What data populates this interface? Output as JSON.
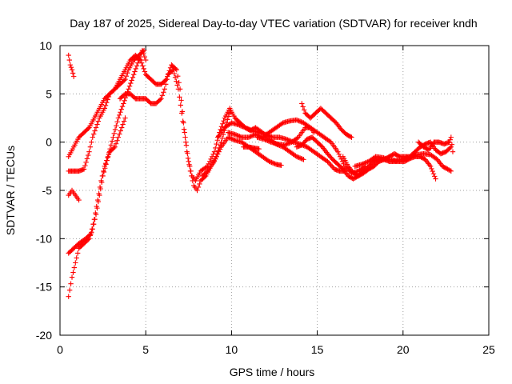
{
  "chart_data": {
    "type": "scatter",
    "title": "Day 187 of 2025, Sidereal Day-to-day VTEC variation (SDTVAR) for receiver kndh",
    "xlabel": "GPS time / hours",
    "ylabel": "SDTVAR / TECUs",
    "xlim": [
      0,
      25
    ],
    "ylim": [
      -20,
      10
    ],
    "xticks": [
      "0",
      "5",
      "10",
      "15",
      "20",
      "25"
    ],
    "yticks": [
      "10",
      "5",
      "0",
      "-5",
      "-10",
      "-15",
      "-20"
    ],
    "grid": true,
    "marker": "plus",
    "color": "#ff0000",
    "series": [
      {
        "name": "s1",
        "points": [
          [
            0.5,
            -16
          ],
          [
            0.7,
            -14
          ],
          [
            0.9,
            -12.5
          ],
          [
            1.1,
            -11
          ],
          [
            1.4,
            -10.5
          ],
          [
            1.7,
            -10
          ],
          [
            1.9,
            -9
          ],
          [
            2.1,
            -7.5
          ],
          [
            2.3,
            -5.5
          ],
          [
            2.5,
            -3.5
          ],
          [
            2.8,
            -1.5
          ],
          [
            3.1,
            0.5
          ],
          [
            3.4,
            2.5
          ],
          [
            3.7,
            4
          ],
          [
            4,
            5.5
          ],
          [
            4.3,
            7
          ],
          [
            4.6,
            8.5
          ],
          [
            4.8,
            9.5
          ],
          [
            5.0,
            8.5
          ]
        ]
      },
      {
        "name": "s2",
        "points": [
          [
            0.5,
            -11.5
          ],
          [
            0.8,
            -11
          ],
          [
            1.1,
            -10.5
          ],
          [
            1.5,
            -10
          ],
          [
            1.8,
            -9.5
          ],
          [
            2.0,
            -8
          ],
          [
            2.2,
            -6
          ],
          [
            2.4,
            -4
          ],
          [
            2.6,
            -2.5
          ],
          [
            2.9,
            -1
          ],
          [
            3.2,
            -0.5
          ],
          [
            3.4,
            0.5
          ],
          [
            3.6,
            1.5
          ],
          [
            3.8,
            2.5
          ]
        ]
      },
      {
        "name": "s3",
        "points": [
          [
            0.5,
            -3
          ],
          [
            0.8,
            -3
          ],
          [
            1.1,
            -3
          ],
          [
            1.4,
            -2.8
          ],
          [
            1.7,
            -1
          ],
          [
            1.9,
            0.5
          ],
          [
            2.1,
            1.5
          ],
          [
            2.3,
            2.5
          ],
          [
            2.6,
            3.5
          ],
          [
            2.9,
            5
          ],
          [
            3.2,
            5.5
          ],
          [
            3.5,
            6
          ],
          [
            3.8,
            6.5
          ],
          [
            4.0,
            7.5
          ],
          [
            4.3,
            8.5
          ],
          [
            4.6,
            9
          ],
          [
            4.9,
            9.5
          ]
        ]
      },
      {
        "name": "s4",
        "points": [
          [
            0.5,
            -5.5
          ],
          [
            0.7,
            -5
          ],
          [
            0.9,
            -5.5
          ],
          [
            1.1,
            -6
          ]
        ]
      },
      {
        "name": "s5",
        "points": [
          [
            0.5,
            9
          ],
          [
            0.6,
            8
          ],
          [
            0.7,
            7.5
          ],
          [
            0.8,
            6.8
          ]
        ]
      },
      {
        "name": "s6",
        "points": [
          [
            0.5,
            -1.5
          ],
          [
            0.8,
            -0.5
          ],
          [
            1.1,
            0.5
          ],
          [
            1.4,
            1
          ],
          [
            1.7,
            1.5
          ],
          [
            2.0,
            2.5
          ],
          [
            2.3,
            3.5
          ],
          [
            2.6,
            4.5
          ],
          [
            2.9,
            5
          ],
          [
            3.2,
            5.5
          ],
          [
            3.5,
            6.5
          ],
          [
            3.8,
            7.5
          ],
          [
            4.1,
            8.5
          ],
          [
            4.4,
            9
          ],
          [
            4.7,
            8.5
          ],
          [
            5.0,
            7
          ],
          [
            5.3,
            6.5
          ],
          [
            5.6,
            6
          ],
          [
            5.9,
            6
          ],
          [
            6.2,
            6.5
          ],
          [
            6.5,
            8
          ],
          [
            6.8,
            7.5
          ],
          [
            7.0,
            5.5
          ],
          [
            7.2,
            2
          ],
          [
            7.4,
            -1
          ],
          [
            7.6,
            -3
          ],
          [
            7.8,
            -4.5
          ],
          [
            8.0,
            -5
          ],
          [
            8.2,
            -4
          ],
          [
            8.5,
            -3.5
          ],
          [
            8.8,
            -2.5
          ],
          [
            9.1,
            -1.5
          ],
          [
            9.4,
            0
          ],
          [
            9.7,
            2
          ],
          [
            9.9,
            3
          ]
        ]
      },
      {
        "name": "s7",
        "points": [
          [
            3.5,
            4.5
          ],
          [
            3.8,
            5
          ],
          [
            4.1,
            5
          ],
          [
            4.4,
            4.5
          ],
          [
            4.7,
            4.5
          ],
          [
            5.0,
            4.5
          ],
          [
            5.3,
            4
          ],
          [
            5.6,
            4
          ],
          [
            5.9,
            4.5
          ],
          [
            6.1,
            5.5
          ],
          [
            6.3,
            7
          ],
          [
            6.6,
            7.5
          ],
          [
            6.9,
            5.5
          ],
          [
            7.1,
            3
          ],
          [
            7.3,
            0.5
          ],
          [
            7.5,
            -2
          ],
          [
            7.7,
            -3.5
          ],
          [
            7.9,
            -4
          ],
          [
            8.2,
            -3
          ],
          [
            8.6,
            -2.5
          ],
          [
            9.0,
            -1
          ],
          [
            9.3,
            1
          ],
          [
            9.6,
            2.5
          ],
          [
            9.9,
            3.5
          ],
          [
            10.2,
            2.5
          ],
          [
            10.5,
            2
          ],
          [
            10.8,
            1.5
          ],
          [
            11.1,
            1.2
          ],
          [
            11.4,
            1.5
          ],
          [
            11.8,
            1
          ],
          [
            12.2,
            0.3
          ],
          [
            12.6,
            -0.2
          ],
          [
            13.0,
            -0.5
          ],
          [
            13.4,
            -1
          ],
          [
            13.8,
            -1.5
          ],
          [
            14.2,
            -1.8
          ]
        ]
      },
      {
        "name": "s8",
        "points": [
          [
            8.3,
            -3.5
          ],
          [
            8.6,
            -3
          ],
          [
            9.0,
            -2
          ],
          [
            9.4,
            -0.5
          ],
          [
            9.8,
            0.5
          ],
          [
            10.2,
            0.2
          ],
          [
            10.6,
            0
          ],
          [
            11.0,
            -0.5
          ],
          [
            11.4,
            -1
          ],
          [
            11.8,
            -1.5
          ],
          [
            12.2,
            -2
          ],
          [
            12.6,
            -2.3
          ],
          [
            12.9,
            -2.4
          ]
        ]
      },
      {
        "name": "s9",
        "points": [
          [
            10.7,
            -0.5
          ],
          [
            11.0,
            -0.5
          ],
          [
            11.3,
            -0.6
          ],
          [
            11.6,
            -0.7
          ]
        ]
      },
      {
        "name": "s10",
        "points": [
          [
            9.2,
            0.5
          ],
          [
            9.6,
            1.5
          ],
          [
            10.0,
            2
          ],
          [
            10.4,
            1.8
          ],
          [
            10.8,
            1.5
          ],
          [
            11.2,
            1.2
          ],
          [
            11.6,
            1
          ],
          [
            12.0,
            0.8
          ],
          [
            12.4,
            0.5
          ],
          [
            12.8,
            0.5
          ],
          [
            13.2,
            0.3
          ],
          [
            13.6,
            0
          ],
          [
            14.0,
            -0.2
          ],
          [
            14.4,
            -0.5
          ],
          [
            14.8,
            -1
          ],
          [
            15.2,
            -1.5
          ],
          [
            15.6,
            -2
          ],
          [
            16.0,
            -2.8
          ],
          [
            16.3,
            -3
          ],
          [
            16.6,
            -3
          ]
        ]
      },
      {
        "name": "s11",
        "points": [
          [
            9.8,
            1
          ],
          [
            10.2,
            0.8
          ],
          [
            10.6,
            0.5
          ],
          [
            11.0,
            0.5
          ],
          [
            11.4,
            0.8
          ],
          [
            11.8,
            0.5
          ],
          [
            12.2,
            1
          ],
          [
            12.6,
            1.5
          ],
          [
            13.0,
            2
          ],
          [
            13.4,
            2.2
          ],
          [
            13.8,
            2.3
          ],
          [
            14.2,
            2
          ],
          [
            14.6,
            1.5
          ],
          [
            15.0,
            1
          ],
          [
            15.4,
            0.5
          ],
          [
            15.8,
            0
          ],
          [
            16.2,
            -1
          ],
          [
            16.6,
            -2.5
          ],
          [
            17.0,
            -3.2
          ],
          [
            17.4,
            -3
          ],
          [
            17.8,
            -2.5
          ]
        ]
      },
      {
        "name": "s12",
        "points": [
          [
            11.5,
            0.5
          ],
          [
            11.9,
            0.3
          ],
          [
            12.3,
            0
          ],
          [
            12.7,
            -0.2
          ],
          [
            13.1,
            -0.3
          ],
          [
            13.5,
            0
          ],
          [
            13.9,
            0.5
          ],
          [
            14.3,
            1.5
          ],
          [
            14.6,
            1.5
          ],
          [
            14.8,
            1
          ]
        ]
      },
      {
        "name": "s13",
        "points": [
          [
            14.1,
            4
          ],
          [
            14.3,
            3
          ],
          [
            14.6,
            2.5
          ],
          [
            14.9,
            3
          ],
          [
            15.2,
            3.5
          ],
          [
            15.5,
            3
          ],
          [
            15.8,
            2.5
          ],
          [
            16.1,
            2
          ],
          [
            16.4,
            1.3
          ],
          [
            16.7,
            0.8
          ],
          [
            17.0,
            0.5
          ]
        ]
      },
      {
        "name": "s14",
        "points": [
          [
            13.8,
            -0.5
          ],
          [
            14.1,
            -0.3
          ],
          [
            14.4,
            0.3
          ],
          [
            14.7,
            0.5
          ],
          [
            15.0,
            0
          ],
          [
            15.3,
            -0.5
          ],
          [
            15.6,
            -1.2
          ],
          [
            15.9,
            -1.8
          ],
          [
            16.2,
            -2.3
          ],
          [
            16.5,
            -2.8
          ],
          [
            16.8,
            -3.5
          ],
          [
            17.1,
            -3.8
          ],
          [
            17.4,
            -3.5
          ],
          [
            17.7,
            -3
          ],
          [
            18.0,
            -2.5
          ],
          [
            18.3,
            -2
          ],
          [
            18.6,
            -1.7
          ],
          [
            18.9,
            -1.8
          ],
          [
            19.2,
            -2
          ],
          [
            19.5,
            -2
          ],
          [
            19.8,
            -2
          ],
          [
            20.1,
            -2
          ],
          [
            20.4,
            -1.7
          ],
          [
            20.7,
            -1.5
          ],
          [
            21.0,
            -1.5
          ],
          [
            21.3,
            -1.8
          ],
          [
            21.6,
            -2.5
          ],
          [
            21.9,
            -3.8
          ]
        ]
      },
      {
        "name": "s15",
        "points": [
          [
            16.5,
            -1.5
          ],
          [
            16.8,
            -2.5
          ],
          [
            17.1,
            -3.2
          ],
          [
            17.4,
            -3.5
          ],
          [
            17.7,
            -3.2
          ],
          [
            18.0,
            -2.8
          ],
          [
            18.3,
            -2.5
          ],
          [
            18.6,
            -2
          ],
          [
            18.9,
            -1.8
          ],
          [
            19.2,
            -1.5
          ],
          [
            19.5,
            -1.2
          ],
          [
            19.8,
            -1.5
          ],
          [
            20.1,
            -1.5
          ],
          [
            20.4,
            -1.5
          ],
          [
            20.7,
            -1
          ],
          [
            21.0,
            -0.5
          ],
          [
            21.3,
            -0.2
          ],
          [
            21.6,
            0
          ],
          [
            21.9,
            -0.8
          ],
          [
            22.2,
            -1.2
          ],
          [
            22.5,
            -1
          ],
          [
            22.8,
            -0.5
          ]
        ]
      },
      {
        "name": "s16",
        "points": [
          [
            17.2,
            -2.5
          ],
          [
            17.6,
            -2.3
          ],
          [
            18.0,
            -2
          ],
          [
            18.4,
            -1.5
          ],
          [
            18.8,
            -1.6
          ],
          [
            19.2,
            -1.8
          ],
          [
            19.6,
            -1.9
          ],
          [
            20.0,
            -1.8
          ],
          [
            20.4,
            -1.5
          ],
          [
            20.8,
            -1.3
          ],
          [
            21.2,
            -1.2
          ],
          [
            21.6,
            -1.3
          ],
          [
            22.0,
            -1.8
          ],
          [
            22.3,
            -2.5
          ],
          [
            22.6,
            -2.8
          ],
          [
            22.8,
            -3
          ]
        ]
      },
      {
        "name": "s17",
        "points": [
          [
            20.9,
            0
          ],
          [
            21.2,
            -0.5
          ],
          [
            21.5,
            -0.8
          ],
          [
            21.8,
            0
          ],
          [
            22.1,
            0
          ],
          [
            22.4,
            -0.2
          ],
          [
            22.7,
            0
          ],
          [
            22.8,
            0.5
          ],
          [
            22.9,
            -1
          ]
        ]
      }
    ]
  }
}
